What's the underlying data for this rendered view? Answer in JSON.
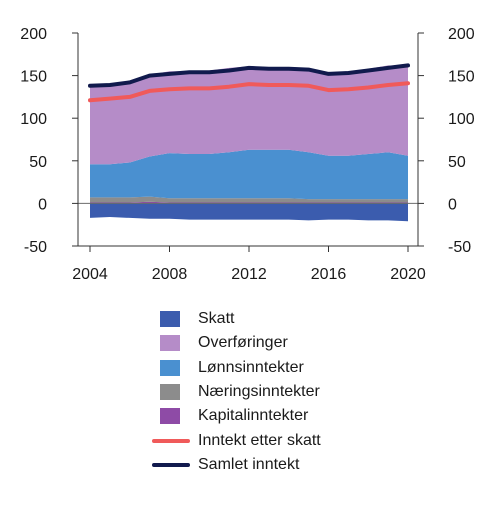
{
  "chart_data": {
    "type": "area",
    "x": [
      2004,
      2005,
      2006,
      2007,
      2008,
      2009,
      2010,
      2011,
      2012,
      2013,
      2014,
      2015,
      2016,
      2017,
      2018,
      2019,
      2020
    ],
    "xticks": [
      "2004",
      "2008",
      "2012",
      "2016",
      "2020"
    ],
    "xtick_values": [
      2004,
      2008,
      2012,
      2016,
      2020
    ],
    "ylim": [
      -50,
      200
    ],
    "yticks": [
      "200",
      "150",
      "100",
      "50",
      "0",
      "-50"
    ],
    "ytick_values": [
      200,
      150,
      100,
      50,
      0,
      -50
    ],
    "secondary_y_axis": true,
    "title": "",
    "xlabel": "",
    "ylabel": "",
    "stacked_positive": [
      {
        "name": "Kapitalinntekter",
        "color": "#8e4ba6",
        "values": [
          1,
          1,
          1,
          2,
          1,
          1,
          1,
          1,
          1,
          1,
          1,
          1,
          1,
          1,
          1,
          1,
          1
        ]
      },
      {
        "name": "Næringsinntekter",
        "color": "#8c8c8c",
        "values": [
          6,
          6,
          6,
          6,
          5,
          5,
          5,
          5,
          5,
          5,
          5,
          4,
          4,
          4,
          4,
          4,
          4
        ]
      },
      {
        "name": "Lønnsinntekter",
        "color": "#4a90d0",
        "values": [
          39,
          39,
          41,
          47,
          53,
          52,
          52,
          54,
          57,
          57,
          57,
          55,
          51,
          51,
          53,
          55,
          51
        ]
      },
      {
        "name": "Overføringer",
        "color": "#b58cc8",
        "values": [
          92,
          93,
          94,
          96,
          96,
          97,
          98,
          99,
          98,
          97,
          97,
          99,
          98,
          99,
          100,
          102,
          105
        ]
      }
    ],
    "negative_series": {
      "name": "Skatt",
      "color": "#3b5cae",
      "values": [
        -17,
        -16,
        -17,
        -18,
        -18,
        -19,
        -19,
        -19,
        -19,
        -19,
        -19,
        -20,
        -19,
        -19,
        -20,
        -20,
        -21
      ]
    },
    "line_series": [
      {
        "name": "Inntekt etter skatt",
        "color": "#f05a5a",
        "values": [
          121,
          123,
          125,
          132,
          134,
          135,
          135,
          137,
          140,
          139,
          139,
          138,
          133,
          134,
          136,
          139,
          141
        ]
      },
      {
        "name": "Samlet inntekt",
        "color": "#111a4d",
        "values": [
          138,
          139,
          142,
          150,
          152,
          154,
          154,
          156,
          159,
          158,
          158,
          157,
          152,
          153,
          156,
          159,
          162
        ]
      }
    ]
  },
  "legend": [
    {
      "label": "Skatt",
      "color": "#3b5cae",
      "kind": "box"
    },
    {
      "label": "Overføringer",
      "color": "#b58cc8",
      "kind": "box"
    },
    {
      "label": "Lønnsinntekter",
      "color": "#4a90d0",
      "kind": "box"
    },
    {
      "label": "Næringsinntekter",
      "color": "#8c8c8c",
      "kind": "box"
    },
    {
      "label": "Kapitalinntekter",
      "color": "#8e4ba6",
      "kind": "box"
    },
    {
      "label": "Inntekt etter skatt",
      "color": "#f05a5a",
      "kind": "line"
    },
    {
      "label": "Samlet inntekt",
      "color": "#111a4d",
      "kind": "line"
    }
  ]
}
